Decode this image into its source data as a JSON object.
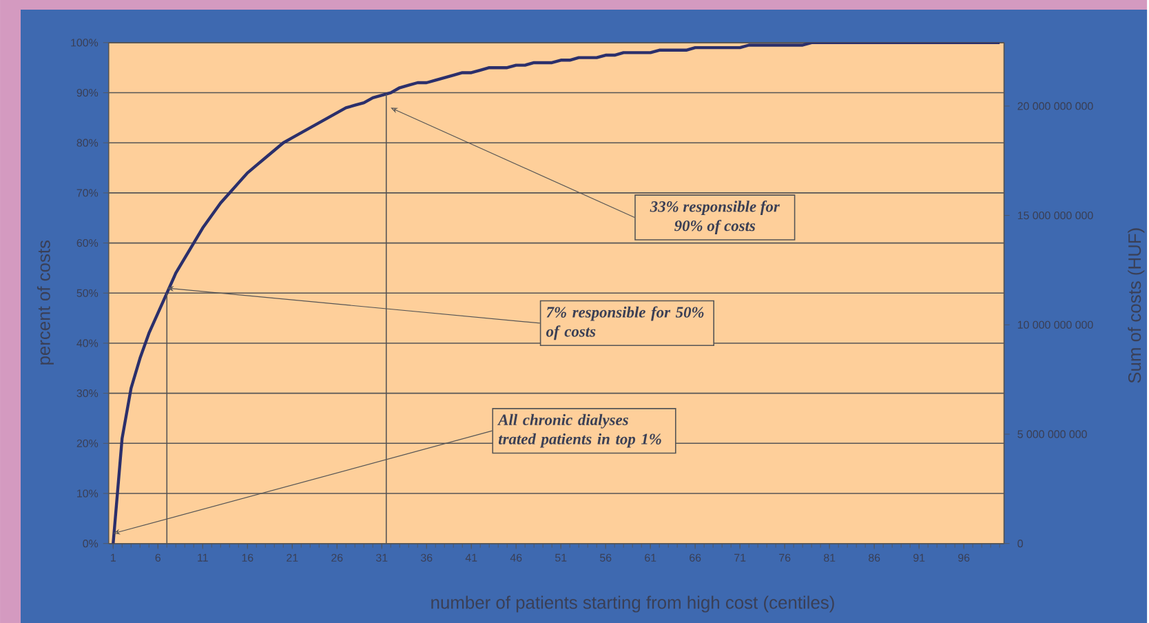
{
  "chart_data": {
    "type": "line",
    "xlabel": "number of patients starting from high cost (centiles)",
    "ylabel": "percent of costs",
    "y2label": "Sum of costs (HUF)",
    "x": [
      1,
      2,
      3,
      4,
      5,
      6,
      7,
      8,
      9,
      10,
      11,
      12,
      13,
      14,
      15,
      16,
      17,
      18,
      19,
      20,
      21,
      22,
      23,
      24,
      25,
      26,
      27,
      28,
      29,
      30,
      31,
      32,
      33,
      34,
      35,
      36,
      37,
      38,
      39,
      40,
      41,
      42,
      43,
      44,
      45,
      46,
      47,
      48,
      49,
      50,
      51,
      52,
      53,
      54,
      55,
      56,
      57,
      58,
      59,
      60,
      61,
      62,
      63,
      64,
      65,
      66,
      67,
      68,
      69,
      70,
      71,
      72,
      73,
      74,
      75,
      76,
      77,
      78,
      79,
      80,
      81,
      82,
      83,
      84,
      85,
      86,
      87,
      88,
      89,
      90,
      91,
      92,
      93,
      94,
      95,
      96,
      97,
      98,
      99,
      100
    ],
    "series": [
      {
        "color": "#2b2f6b",
        "values": [
          0,
          21,
          31,
          37,
          42,
          46,
          50,
          54,
          57,
          60,
          63,
          65.5,
          68,
          70,
          72,
          74,
          75.5,
          77,
          78.5,
          80,
          81,
          82,
          83,
          84,
          85,
          86,
          87,
          87.5,
          88,
          89,
          89.5,
          90,
          91,
          91.5,
          92,
          92,
          92.5,
          93,
          93.5,
          94,
          94,
          94.5,
          95,
          95,
          95,
          95.5,
          95.5,
          96,
          96,
          96,
          96.5,
          96.5,
          97,
          97,
          97,
          97.5,
          97.5,
          98,
          98,
          98,
          98,
          98.5,
          98.5,
          98.5,
          98.5,
          99,
          99,
          99,
          99,
          99,
          99,
          99.5,
          99.5,
          99.5,
          99.5,
          99.5,
          99.5,
          99.5,
          100,
          100,
          100,
          100,
          100,
          100,
          100,
          100,
          100,
          100,
          100,
          100,
          100,
          100,
          100,
          100,
          100,
          100,
          100,
          100,
          100,
          100
        ]
      }
    ],
    "xlim": [
      0.5,
      100.5
    ],
    "xticks": [
      1,
      6,
      11,
      16,
      21,
      26,
      31,
      36,
      41,
      46,
      51,
      56,
      61,
      66,
      71,
      76,
      81,
      86,
      91,
      96
    ],
    "ylim": [
      0,
      100
    ],
    "yticks": [
      {
        "value": 0,
        "label": "0%"
      },
      {
        "value": 10,
        "label": "10%"
      },
      {
        "value": 20,
        "label": "20%"
      },
      {
        "value": 30,
        "label": "30%"
      },
      {
        "value": 40,
        "label": "40%"
      },
      {
        "value": 50,
        "label": "50%"
      },
      {
        "value": 60,
        "label": "60%"
      },
      {
        "value": 70,
        "label": "70%"
      },
      {
        "value": 80,
        "label": "80%"
      },
      {
        "value": 90,
        "label": "90%"
      },
      {
        "value": 100,
        "label": "100%"
      }
    ],
    "y2lim": [
      0,
      22900000000
    ],
    "y2ticks": [
      0,
      {
        "value": 5000000000,
        "label": "5 000 000 000"
      },
      {
        "value": 10000000000,
        "label": "10 000 000 000"
      },
      {
        "value": 15000000000,
        "label": "15 000 000 000"
      },
      {
        "value": 20000000000,
        "label": "20 000 000 000"
      }
    ],
    "grid": "y",
    "ref_lines": [
      {
        "axis": "x",
        "value": 7
      },
      {
        "axis": "x",
        "value": 31.5
      }
    ],
    "annotations": [
      {
        "text": "All chronic dialyses trated patients in top 1%",
        "x": 1,
        "y": 2
      },
      {
        "text": "7% responsible for 50% of costs",
        "x": 7,
        "y": 51
      },
      {
        "text": "33% responsible for 90% of costs",
        "x": 32,
        "y": 87
      }
    ]
  }
}
